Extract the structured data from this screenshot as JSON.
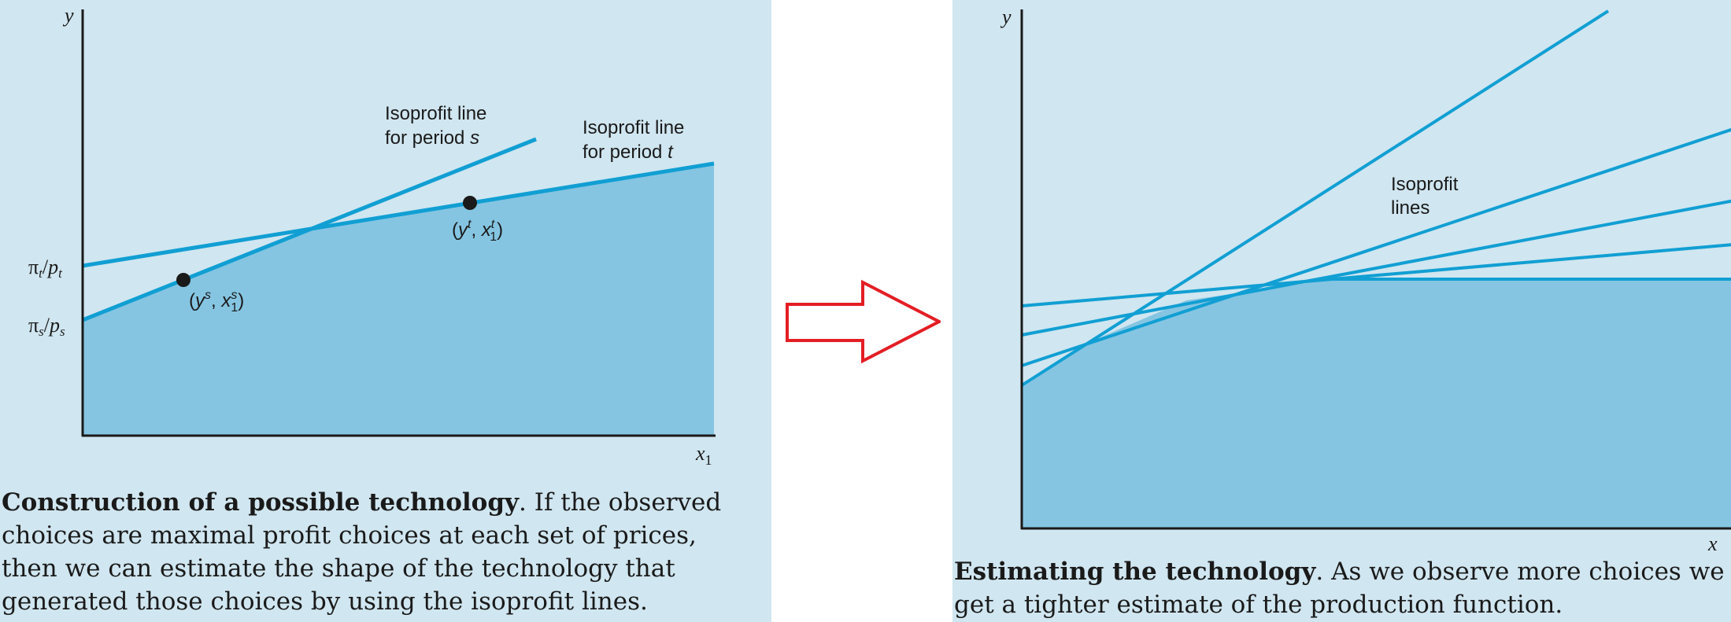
{
  "left_figure": {
    "y_axis_label": "y",
    "x_axis_label": "x",
    "x_axis_subscript": "1",
    "y_tick_t": {
      "num": "π",
      "num_sub": "t",
      "den": "p",
      "den_sub": "t"
    },
    "y_tick_s": {
      "num": "π",
      "num_sub": "s",
      "den": "p",
      "den_sub": "s"
    },
    "iso_s_label_line1": "Isoprofit line",
    "iso_s_label_line2": "for period",
    "iso_s_label_var": "s",
    "iso_t_label_line1": "Isoprofit line",
    "iso_t_label_line2": "for period",
    "iso_t_label_var": "t",
    "point_s_label": {
      "y": "y",
      "y_sup": "s",
      "x": "x",
      "x_sup": "s",
      "x_sub": "1"
    },
    "point_t_label": {
      "y": "y",
      "y_sup": "t",
      "x": "x",
      "x_sup": "t",
      "x_sub": "1"
    }
  },
  "left_caption": {
    "bold": "Construction of a possible technology",
    "text": ".  If the observed choices are maximal profit choices at each set of prices, then we can estimate the shape of the technology that generated those choices by using the isoprofit lines."
  },
  "right_figure": {
    "y_axis_label": "y",
    "x_axis_label": "x",
    "iso_label_line1": "Isoprofit",
    "iso_label_line2": "lines"
  },
  "right_caption": {
    "bold": "Estimating the technology",
    "text": ".  As we observe more choices we get a tighter estimate of the production function."
  },
  "colors": {
    "panel_bg": "#d0e6f0",
    "region_fill": "#85c5e2",
    "line": "#119fd3",
    "axis": "#1a1a1a",
    "arrow": "#e31e24"
  }
}
